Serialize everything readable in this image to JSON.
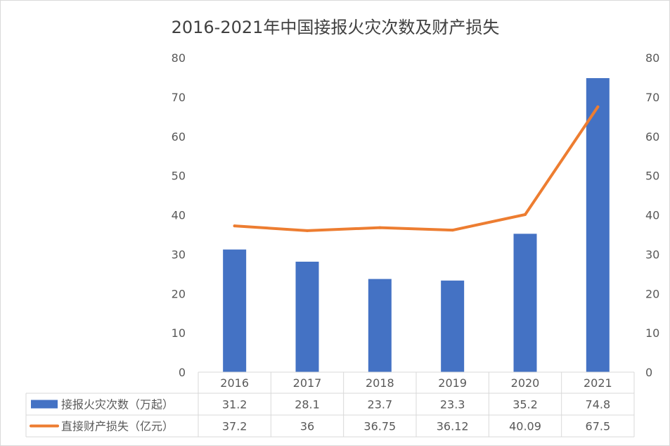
{
  "chart_data": {
    "type": "bar",
    "title": "2016-2021年中国接报火灾次数及财产损失",
    "categories": [
      "2016",
      "2017",
      "2018",
      "2019",
      "2020",
      "2021"
    ],
    "series": [
      {
        "name": "接报火灾次数（万起）",
        "type": "bar",
        "axis": "left",
        "color": "#4472c4",
        "values": [
          31.2,
          28.1,
          23.7,
          23.3,
          35.2,
          74.8
        ],
        "table_labels": [
          "31.2",
          "28.1",
          "23.7",
          "23.3",
          "35.2",
          "74.8"
        ]
      },
      {
        "name": "直接财产损失（亿元）",
        "type": "line",
        "axis": "right",
        "color": "#ed7d31",
        "values": [
          37.2,
          36,
          36.75,
          36.12,
          40.09,
          67.5
        ],
        "table_labels": [
          "37.2",
          "36",
          "36.75",
          "36.12",
          "40.09",
          "67.5"
        ]
      }
    ],
    "ylim": [
      0,
      80
    ],
    "y_ticks": [
      "0",
      "10",
      "20",
      "30",
      "40",
      "50",
      "60",
      "70",
      "80"
    ],
    "y2lim": [
      0,
      80
    ],
    "y2_ticks": [
      "0",
      "10",
      "20",
      "30",
      "40",
      "50",
      "60",
      "70",
      "80"
    ],
    "grid": false,
    "legend": "data-table"
  }
}
